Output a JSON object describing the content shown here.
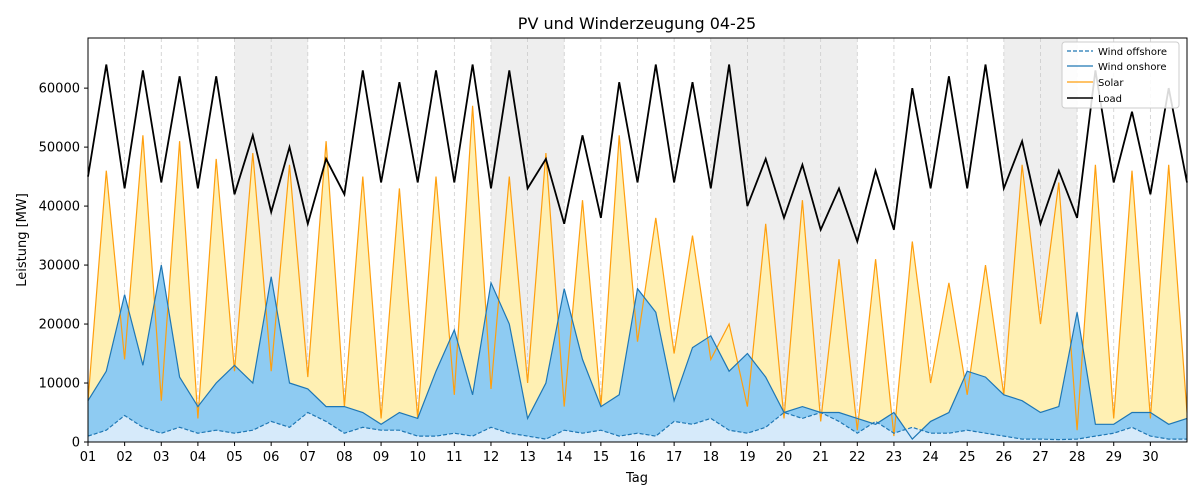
{
  "chart_data": {
    "type": "area",
    "title": "PV und Winderzeugung 04-25",
    "xlabel": "Tag",
    "ylabel": "Leistung [MW]",
    "xlim": [
      1,
      31
    ],
    "ylim": [
      0,
      68500
    ],
    "y_ticks": [
      0,
      10000,
      20000,
      30000,
      40000,
      50000,
      60000
    ],
    "x_ticks": [
      "01",
      "02",
      "03",
      "04",
      "05",
      "06",
      "07",
      "08",
      "09",
      "10",
      "11",
      "12",
      "13",
      "14",
      "15",
      "16",
      "17",
      "18",
      "19",
      "20",
      "21",
      "22",
      "23",
      "24",
      "25",
      "26",
      "27",
      "28",
      "29",
      "30"
    ],
    "weekend_days": [
      5,
      6,
      12,
      13,
      18,
      19,
      20,
      21,
      26,
      27
    ],
    "grid": "vertical dashed per day",
    "legend_position": "top-right",
    "colors": {
      "wind_offshore": "#1f77b4",
      "wind_onshore": "#1f77b4",
      "solar": "#ff9f0e",
      "load": "#000000",
      "offshore_fill": "#d6eafa",
      "onshore_fill": "#8ecbf2",
      "solar_fill": "#fff0b3",
      "weekend_shade": "#eeeeee"
    },
    "series": [
      {
        "name": "Wind offshore",
        "style": "dashed",
        "values": [
          1000,
          2000,
          4500,
          2500,
          1500,
          2500,
          1500,
          2000,
          1500,
          2000,
          3500,
          2500,
          5000,
          3500,
          1500,
          2500,
          2000,
          2000,
          1000,
          1000,
          1500,
          1000,
          2500,
          1500,
          1000,
          500,
          2000,
          1500,
          2000,
          1000,
          1500,
          1000,
          3500,
          3000,
          4000,
          2000,
          1500,
          2500,
          5000,
          4000,
          5000,
          3500,
          1500,
          3500,
          1500,
          2500,
          1500,
          1500,
          2000,
          1500,
          1000,
          500,
          500,
          400,
          500,
          1000,
          1500,
          2500,
          1000,
          500,
          500
        ]
      },
      {
        "name": "Wind onshore",
        "style": "solid",
        "values": [
          7000,
          12000,
          25000,
          13000,
          30000,
          11000,
          6000,
          10000,
          13000,
          10000,
          28000,
          10000,
          9000,
          6000,
          6000,
          5000,
          3000,
          5000,
          4000,
          12000,
          19000,
          8000,
          27000,
          20000,
          4000,
          10000,
          26000,
          14000,
          6000,
          8000,
          26000,
          22000,
          7000,
          16000,
          18000,
          12000,
          15000,
          11000,
          5000,
          6000,
          5000,
          5000,
          4000,
          3000,
          5000,
          500,
          3500,
          5000,
          12000,
          11000,
          8000,
          7000,
          5000,
          6000,
          22000,
          3000,
          3000,
          5000,
          5000,
          3000,
          4000
        ]
      },
      {
        "name": "Solar",
        "style": "solid",
        "values": [
          7000,
          46000,
          14000,
          52000,
          7000,
          51000,
          4000,
          48000,
          12000,
          49000,
          12000,
          47000,
          11000,
          51000,
          6000,
          45000,
          4000,
          43000,
          4000,
          45000,
          8000,
          57000,
          9000,
          45000,
          10000,
          49000,
          6000,
          41000,
          6000,
          52000,
          17000,
          38000,
          15000,
          35000,
          14000,
          20000,
          6000,
          37000,
          4000,
          41000,
          3500,
          31000,
          2000,
          31000,
          1000,
          34000,
          10000,
          27000,
          8000,
          30000,
          8000,
          47000,
          20000,
          44000,
          2000,
          47000,
          4000,
          46000,
          4000,
          47000,
          5000
        ]
      },
      {
        "name": "Load",
        "style": "solid",
        "values": [
          45000,
          64000,
          43000,
          63000,
          44000,
          62000,
          43000,
          62000,
          42000,
          52000,
          39000,
          50000,
          37000,
          48000,
          42000,
          63000,
          44000,
          61000,
          44000,
          63000,
          44000,
          64000,
          43000,
          63000,
          43000,
          48000,
          37000,
          52000,
          38000,
          61000,
          44000,
          64000,
          44000,
          61000,
          43000,
          64000,
          40000,
          48000,
          38000,
          47000,
          36000,
          43000,
          34000,
          46000,
          36000,
          60000,
          43000,
          62000,
          43000,
          64000,
          43000,
          51000,
          37000,
          46000,
          38000,
          63000,
          44000,
          56000,
          42000,
          60000,
          44000
        ]
      }
    ]
  }
}
